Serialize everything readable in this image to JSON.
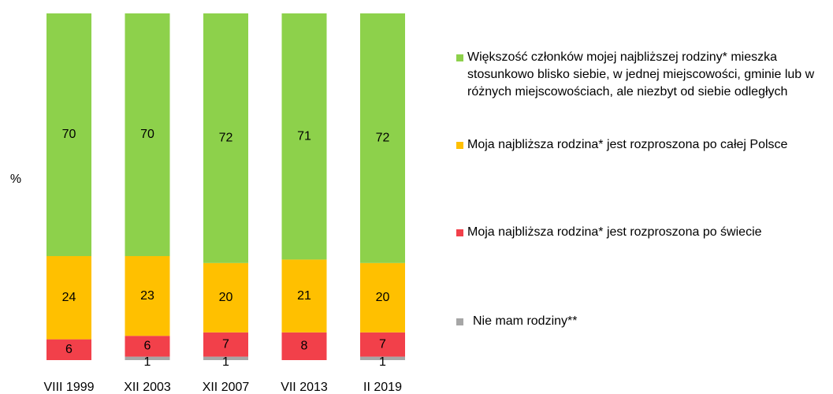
{
  "chart_data": {
    "type": "stacked-bar",
    "y_label": "%",
    "categories": [
      "VIII 1999",
      "XII 2003",
      "XII 2007",
      "VII 2013",
      "II 2019"
    ],
    "ylim": [
      0,
      100
    ],
    "series": [
      {
        "name": "Nie mam rodziny**",
        "color": "#a6a6a6",
        "values": [
          null,
          1,
          1,
          null,
          1
        ]
      },
      {
        "name": "Moja najbliższa rodzina* jest rozproszona po świecie",
        "color": "#f2404a",
        "values": [
          6,
          6,
          7,
          8,
          7
        ]
      },
      {
        "name": "Moja najbliższa rodzina* jest rozproszona po całej Polsce",
        "color": "#ffc000",
        "values": [
          24,
          23,
          20,
          21,
          20
        ]
      },
      {
        "name": "Większość członków mojej najbliższej rodziny* mieszka stosunkowo blisko siebie, w jednej miejscowości, gminie lub w różnych miejscowościach, ale niezbyt od siebie odległych",
        "color": "#8dd14b",
        "values": [
          70,
          70,
          72,
          71,
          72
        ]
      }
    ],
    "legend": "right"
  }
}
